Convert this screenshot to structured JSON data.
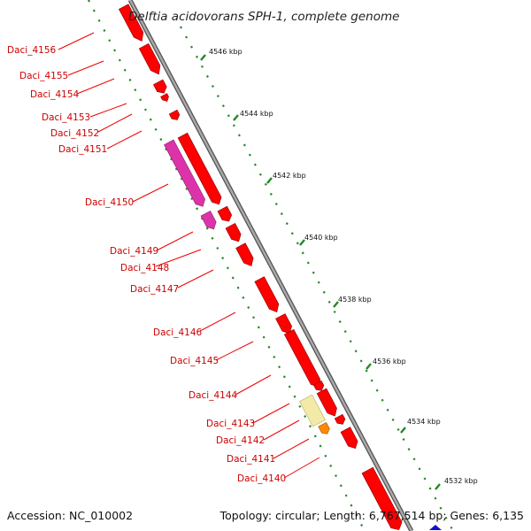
{
  "title": "Delftia acidovorans SPH-1, complete genome",
  "footer": {
    "accession": "Accession: NC_010002",
    "topology": "Topology: circular; Length: 6,767,514 bp; Genes: 6,135"
  },
  "colors": {
    "backbone": "#888888",
    "gene": "#ff0000",
    "gene_magenta": "#dd33aa",
    "gene_yellow": "#f3eaa8",
    "gene_orange": "#ff8800",
    "label": "#cc0000",
    "tick": "#228822",
    "marker": "#1111cc"
  },
  "scale_ticks": [
    {
      "label": "4546 kbp"
    },
    {
      "label": "4544 kbp"
    },
    {
      "label": "4542 kbp"
    },
    {
      "label": "4540 kbp"
    },
    {
      "label": "4538 kbp"
    },
    {
      "label": "4536 kbp"
    },
    {
      "label": "4534 kbp"
    },
    {
      "label": "4532 kbp"
    }
  ],
  "gene_labels": [
    "Daci_4156",
    "Daci_4155",
    "Daci_4154",
    "Daci_4153",
    "Daci_4152",
    "Daci_4151",
    "Daci_4150",
    "Daci_4149",
    "Daci_4148",
    "Daci_4147",
    "Daci_4146",
    "Daci_4145",
    "Daci_4144",
    "Daci_4143",
    "Daci_4142",
    "Daci_4141",
    "Daci_4140"
  ]
}
